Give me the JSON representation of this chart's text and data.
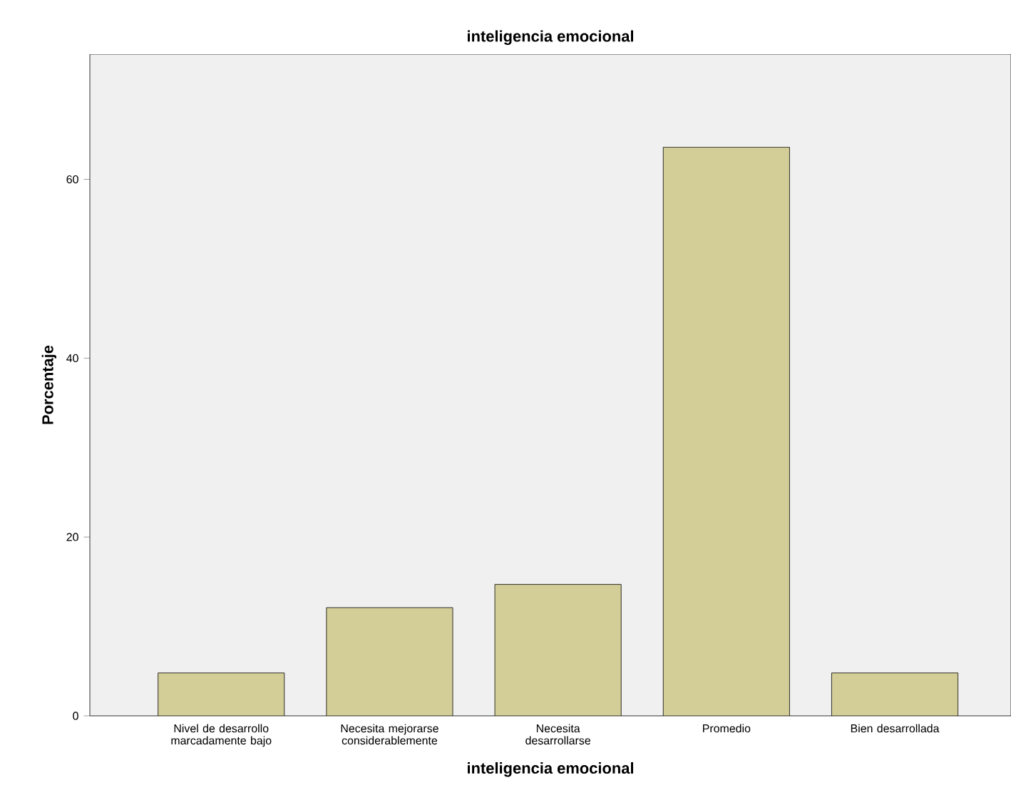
{
  "chart_data": {
    "type": "bar",
    "title": "inteligencia emocional",
    "xlabel": "inteligencia emocional",
    "ylabel": "Porcentaje",
    "categories": [
      "Nivel de desarrollo marcadamente bajo",
      "Necesita mejorarse considerablemente",
      "Necesita desarrollarse",
      "Promedio",
      "Bien desarrollada"
    ],
    "values": [
      4.8,
      12.1,
      14.7,
      63.6,
      4.8
    ],
    "color": "#d3ce97",
    "ylim": [
      0,
      74
    ],
    "yticks": [
      0,
      20,
      40,
      60
    ],
    "grid": false
  }
}
